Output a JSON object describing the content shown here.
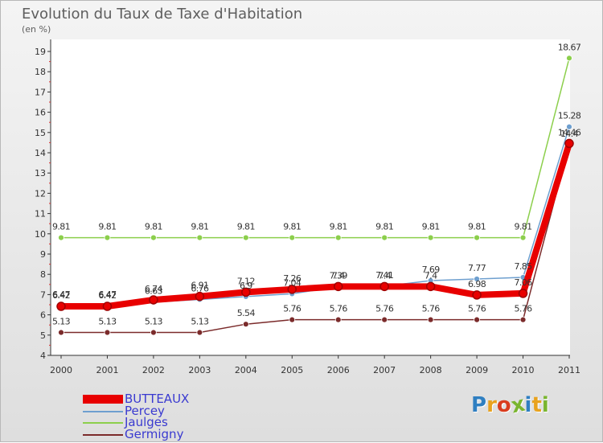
{
  "header": {
    "title": "Evolution du Taux de Taxe d'Habitation",
    "unit": "(en %)"
  },
  "logo": {
    "text": "Proxiti",
    "colors": [
      "#2f7fc1",
      "#e8a21e",
      "#d93d1f",
      "#7ab52f",
      "#2f7fc1",
      "#e8a21e",
      "#7ab52f"
    ]
  },
  "chart_data": {
    "type": "line",
    "title": "Evolution du Taux de Taxe d'Habitation",
    "ylabel": "(en %)",
    "xlabel": "",
    "x": [
      "2000",
      "2001",
      "2002",
      "2003",
      "2004",
      "2005",
      "2006",
      "2007",
      "2008",
      "2009",
      "2010",
      "2011"
    ],
    "ylim": [
      4,
      19
    ],
    "yticks": [
      4,
      5,
      6,
      7,
      8,
      9,
      10,
      11,
      12,
      13,
      14,
      15,
      16,
      17,
      18,
      19
    ],
    "grid": false,
    "legend": "bottom-left",
    "series": [
      {
        "name": "BUTTEAUX",
        "color": "#e80000",
        "values": [
          6.42,
          6.42,
          6.74,
          6.91,
          7.12,
          7.26,
          7.4,
          7.4,
          7.4,
          6.98,
          7.06,
          14.46
        ],
        "labels": [
          "6.42",
          "6.42",
          "6.74",
          "6.91",
          "7.12",
          "7.26",
          "7.4",
          "7.4",
          "7.4",
          "6.98",
          "7.06",
          "14.46"
        ]
      },
      {
        "name": "Percey",
        "color": "#6e9fcf",
        "values": [
          6.47,
          6.47,
          6.63,
          6.76,
          6.9,
          7.04,
          7.39,
          7.41,
          7.69,
          7.77,
          7.85,
          15.28
        ],
        "labels": [
          "6.47",
          "6.47",
          "6.63",
          "6.76",
          "6.9",
          "7.04",
          "7.39",
          "7.41",
          "7.69",
          "7.77",
          "7.85",
          "15.28"
        ]
      },
      {
        "name": "Jaulges",
        "color": "#8ccf4c",
        "values": [
          9.81,
          9.81,
          9.81,
          9.81,
          9.81,
          9.81,
          9.81,
          9.81,
          9.81,
          9.81,
          9.81,
          18.67
        ],
        "labels": [
          "9.81",
          "9.81",
          "9.81",
          "9.81",
          "9.81",
          "9.81",
          "9.81",
          "9.81",
          "9.81",
          "9.81",
          "9.81",
          "18.67"
        ]
      },
      {
        "name": "Germigny",
        "color": "#7b2b2b",
        "values": [
          5.13,
          5.13,
          5.13,
          5.13,
          5.54,
          5.76,
          5.76,
          5.76,
          5.76,
          5.76,
          5.76,
          14.4
        ],
        "labels": [
          "5.13",
          "5.13",
          "5.13",
          "5.13",
          "5.54",
          "5.76",
          "5.76",
          "5.76",
          "5.76",
          "5.76",
          "5.76",
          "14.4"
        ]
      }
    ]
  }
}
